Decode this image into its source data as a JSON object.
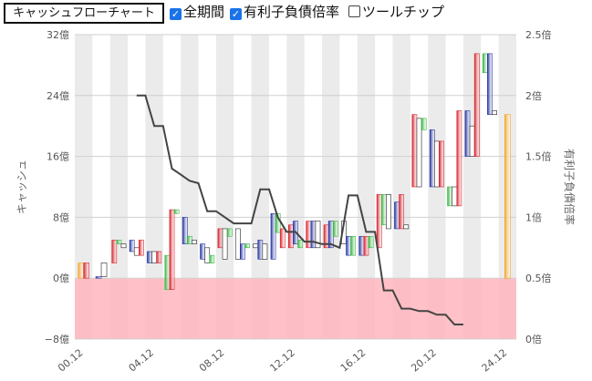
{
  "toolbar": {
    "chart_button_label": "キャッシュフローチャート",
    "options": [
      {
        "label": "全期間",
        "checked": true
      },
      {
        "label": "有利子負債倍率",
        "checked": true
      },
      {
        "label": "ツールチップ",
        "checked": false
      }
    ]
  },
  "colors": {
    "positive_area": "#ffffff",
    "negative_area": "#ffb6bd",
    "stripe": "#ebebeb",
    "cf_red": "#d8202a",
    "cf_blue": "#2332a0",
    "cf_green": "#33b53d",
    "cf_white": "#ffffff",
    "cf_orange": "#f5a623",
    "line": "#444444"
  },
  "chart_data": {
    "type": "waterfall",
    "ylabel": "キャッシュ",
    "y2label": "有利子負債倍率",
    "ylim": [
      -8,
      32
    ],
    "y2lim": [
      0,
      2.5
    ],
    "y_ticks": [
      "32億",
      "24億",
      "16億",
      "8億",
      "0億",
      "−8億"
    ],
    "y2_ticks": [
      "2.5倍",
      "2倍",
      "1.5倍",
      "1倍",
      "0.5倍",
      "0倍"
    ],
    "x_ticks": [
      "00.12",
      "04.12",
      "08.12",
      "12.12",
      "16.12",
      "20.12",
      "24.12"
    ],
    "periods": 25,
    "bars": [
      {
        "period": 0,
        "segments": [
          [
            0,
            2,
            "orange"
          ],
          [
            0,
            2,
            "red"
          ]
        ]
      },
      {
        "period": 1,
        "segments": [
          [
            0,
            0.2,
            "blue"
          ],
          [
            0.2,
            2,
            "white"
          ]
        ]
      },
      {
        "period": 2,
        "segments": [
          [
            2,
            5,
            "red"
          ],
          [
            4.5,
            5,
            "green"
          ],
          [
            4,
            4.5,
            "white"
          ]
        ]
      },
      {
        "period": 3,
        "segments": [
          [
            3.5,
            5,
            "blue"
          ],
          [
            3,
            4,
            "white"
          ],
          [
            3,
            5,
            "red"
          ]
        ]
      },
      {
        "period": 4,
        "segments": [
          [
            2,
            3.5,
            "blue"
          ],
          [
            2,
            3.5,
            "white"
          ],
          [
            2,
            3.5,
            "red"
          ]
        ]
      },
      {
        "period": 5,
        "segments": [
          [
            -1.5,
            3,
            "green"
          ],
          [
            -1.5,
            9,
            "red"
          ],
          [
            8.5,
            9,
            "green"
          ]
        ]
      },
      {
        "period": 6,
        "segments": [
          [
            4.5,
            8,
            "blue"
          ],
          [
            4.5,
            5.5,
            "green"
          ],
          [
            4.5,
            5,
            "white"
          ]
        ]
      },
      {
        "period": 7,
        "segments": [
          [
            2.5,
            4.5,
            "blue"
          ],
          [
            2,
            4,
            "white"
          ],
          [
            2,
            3,
            "green"
          ]
        ]
      },
      {
        "period": 8,
        "segments": [
          [
            4,
            6.5,
            "red"
          ],
          [
            2.5,
            6.5,
            "white"
          ],
          [
            5.5,
            6.5,
            "green"
          ]
        ]
      },
      {
        "period": 9,
        "segments": [
          [
            2.5,
            6.5,
            "white"
          ],
          [
            2.5,
            4.5,
            "blue"
          ],
          [
            4,
            4.5,
            "green"
          ]
        ]
      },
      {
        "period": 10,
        "segments": [
          [
            4,
            4.5,
            "white"
          ],
          [
            2.5,
            5,
            "blue"
          ],
          [
            2.5,
            4.5,
            "white"
          ]
        ]
      },
      {
        "period": 11,
        "segments": [
          [
            2.5,
            8.5,
            "blue"
          ],
          [
            6,
            8.5,
            "green"
          ],
          [
            4,
            6.5,
            "red"
          ]
        ]
      },
      {
        "period": 12,
        "segments": [
          [
            4,
            7,
            "red"
          ],
          [
            4.5,
            7.5,
            "blue"
          ],
          [
            4,
            5,
            "green"
          ]
        ]
      },
      {
        "period": 13,
        "segments": [
          [
            4,
            7.5,
            "red"
          ],
          [
            4,
            7.5,
            "blue"
          ],
          [
            4,
            7.5,
            "white"
          ]
        ]
      },
      {
        "period": 14,
        "segments": [
          [
            4,
            7,
            "red"
          ],
          [
            4,
            7.5,
            "blue"
          ],
          [
            5.5,
            7.5,
            "green"
          ]
        ]
      },
      {
        "period": 15,
        "segments": [
          [
            4.5,
            7.5,
            "white"
          ],
          [
            3,
            5.5,
            "blue"
          ],
          [
            3,
            5.5,
            "green"
          ]
        ]
      },
      {
        "period": 16,
        "segments": [
          [
            3,
            5.5,
            "blue"
          ],
          [
            3,
            5.5,
            "red"
          ],
          [
            4,
            5.5,
            "green"
          ]
        ]
      },
      {
        "period": 17,
        "segments": [
          [
            4,
            11,
            "red"
          ],
          [
            7,
            11,
            "green"
          ],
          [
            6.5,
            11,
            "white"
          ]
        ]
      },
      {
        "period": 18,
        "segments": [
          [
            6.5,
            10,
            "blue"
          ],
          [
            6.5,
            11,
            "red"
          ],
          [
            6.5,
            7,
            "white"
          ]
        ]
      },
      {
        "period": 19,
        "segments": [
          [
            12,
            21.5,
            "red"
          ],
          [
            12,
            21,
            "white"
          ],
          [
            19.5,
            21,
            "green"
          ]
        ]
      },
      {
        "period": 20,
        "segments": [
          [
            12,
            19.5,
            "blue"
          ],
          [
            12,
            18,
            "white"
          ],
          [
            12,
            18,
            "red"
          ]
        ]
      },
      {
        "period": 21,
        "segments": [
          [
            9.5,
            12,
            "green"
          ],
          [
            9.5,
            12,
            "white"
          ],
          [
            9.5,
            22,
            "red"
          ]
        ]
      },
      {
        "period": 22,
        "segments": [
          [
            16,
            22,
            "blue"
          ],
          [
            16,
            20,
            "white"
          ],
          [
            16,
            29.5,
            "red"
          ]
        ]
      },
      {
        "period": 23,
        "segments": [
          [
            27,
            29.5,
            "green"
          ],
          [
            21.5,
            29.5,
            "blue"
          ],
          [
            21.5,
            22,
            "white"
          ]
        ]
      },
      {
        "period": 24,
        "segments": [
          [
            0,
            21.5,
            "orange"
          ]
        ]
      }
    ],
    "ratio_line": [
      [
        3,
        2.0
      ],
      [
        3.5,
        2.0
      ],
      [
        4,
        1.75
      ],
      [
        4.5,
        1.75
      ],
      [
        5,
        1.4
      ],
      [
        5.5,
        1.35
      ],
      [
        6,
        1.3
      ],
      [
        6.5,
        1.28
      ],
      [
        7,
        1.05
      ],
      [
        7.5,
        1.05
      ],
      [
        8,
        1.0
      ],
      [
        8.5,
        0.95
      ],
      [
        9,
        0.95
      ],
      [
        9.5,
        0.95
      ],
      [
        10,
        1.23
      ],
      [
        10.5,
        1.23
      ],
      [
        11,
        1.0
      ],
      [
        11.5,
        0.88
      ],
      [
        12,
        0.88
      ],
      [
        12.5,
        0.8
      ],
      [
        13,
        0.8
      ],
      [
        13.5,
        0.78
      ],
      [
        14,
        0.78
      ],
      [
        14.5,
        0.75
      ],
      [
        15,
        1.18
      ],
      [
        15.5,
        1.18
      ],
      [
        16,
        0.88
      ],
      [
        16.5,
        0.88
      ],
      [
        17,
        0.4
      ],
      [
        17.5,
        0.4
      ],
      [
        18,
        0.25
      ],
      [
        18.5,
        0.25
      ],
      [
        19,
        0.23
      ],
      [
        19.5,
        0.23
      ],
      [
        20,
        0.2
      ],
      [
        20.5,
        0.2
      ],
      [
        21,
        0.12
      ],
      [
        21.5,
        0.12
      ]
    ]
  }
}
